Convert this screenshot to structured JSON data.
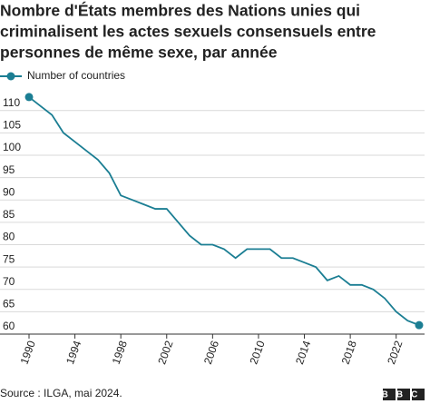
{
  "chart_data": {
    "type": "line",
    "title": [
      "Nombre d'États membres des Nations unies qui",
      "criminalisent les actes sexuels consensuels entre",
      "personnes de même sexe, par année"
    ],
    "x": [
      1990,
      1991,
      1992,
      1993,
      1994,
      1995,
      1996,
      1997,
      1998,
      1999,
      2000,
      2001,
      2002,
      2003,
      2004,
      2005,
      2006,
      2007,
      2008,
      2009,
      2010,
      2011,
      2012,
      2013,
      2014,
      2015,
      2016,
      2017,
      2018,
      2019,
      2020,
      2021,
      2022,
      2023,
      2024
    ],
    "series": [
      {
        "name": "Number of countries",
        "color": "#1b7e93",
        "values": [
          113,
          111,
          109,
          105,
          103,
          101,
          99,
          96,
          91,
          90,
          89,
          88,
          88,
          85,
          82,
          80,
          80,
          79,
          77,
          79,
          79,
          79,
          77,
          77,
          76,
          75,
          72,
          73,
          71,
          71,
          70,
          68,
          65,
          63,
          62
        ]
      }
    ],
    "xlim": [
      1990,
      2024
    ],
    "xticks": [
      1990,
      1994,
      1998,
      2002,
      2006,
      2010,
      2014,
      2018,
      2022
    ],
    "ylim": [
      60,
      114
    ],
    "yticks": [
      60,
      65,
      70,
      75,
      80,
      85,
      90,
      95,
      100,
      105,
      110
    ],
    "grid": true,
    "source": "Source : ILGA, mai 2024.",
    "logo": "BBC"
  }
}
